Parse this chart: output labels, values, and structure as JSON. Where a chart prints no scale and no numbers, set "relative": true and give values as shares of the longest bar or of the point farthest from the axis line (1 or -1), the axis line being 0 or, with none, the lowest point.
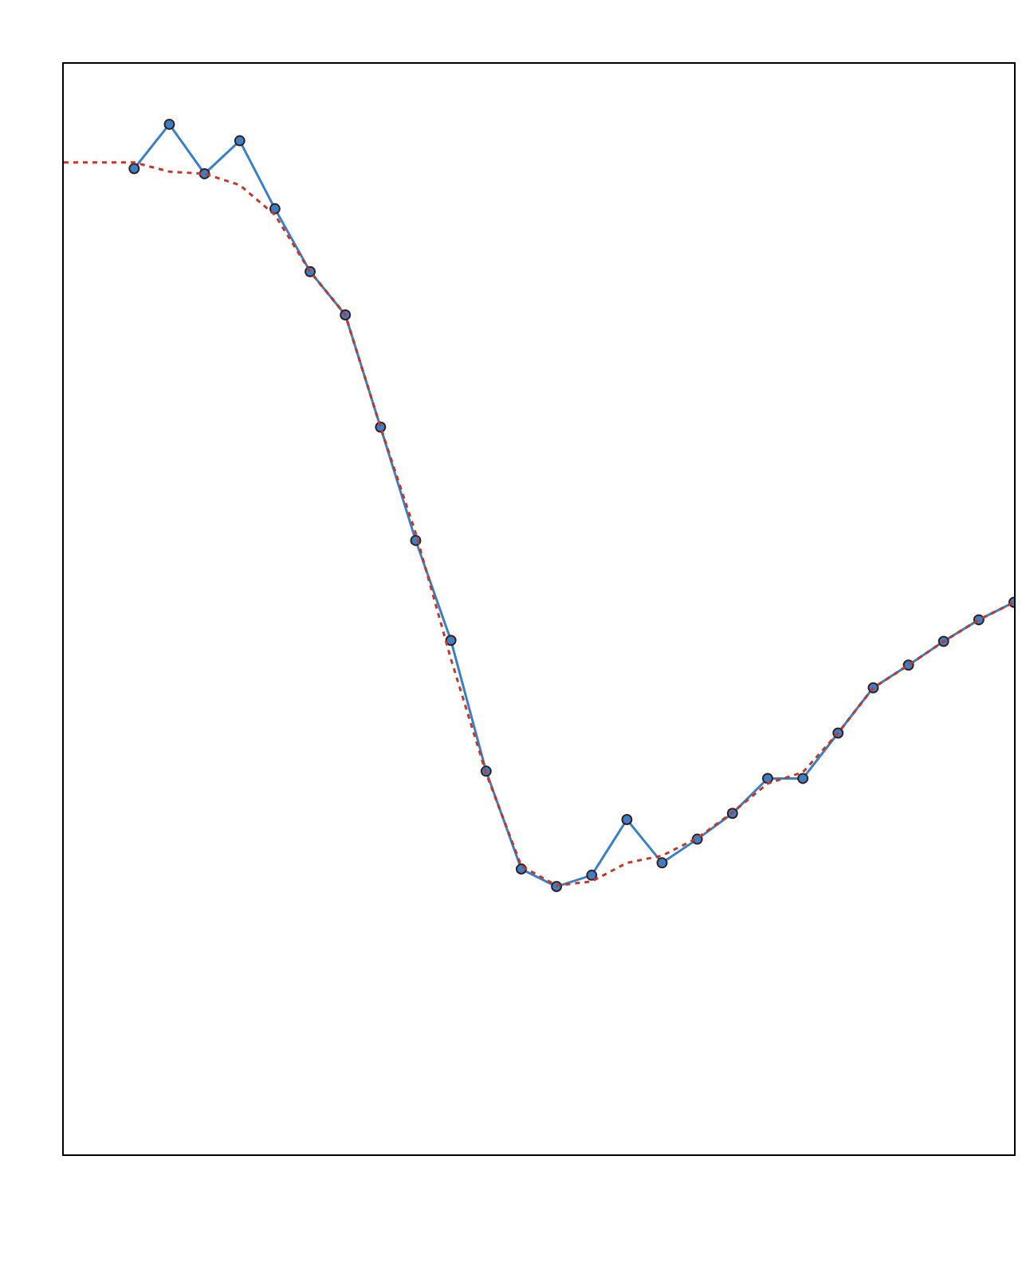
{
  "chart_data": {
    "type": "line",
    "relative": true,
    "categories": [
      null,
      null,
      null,
      null,
      null,
      null,
      null,
      null,
      null,
      null,
      null,
      null,
      null,
      null,
      null,
      null,
      null,
      null,
      null,
      null,
      null,
      null,
      null,
      null,
      null,
      null,
      null,
      null
    ],
    "series": [
      {
        "color": "#3b7fc4",
        "marker": "circle",
        "line_style": "solid",
        "values": [
          null,
          null,
          0.957,
          1.0,
          0.952,
          0.984,
          0.918,
          0.857,
          0.815,
          0.706,
          0.596,
          0.499,
          0.372,
          0.277,
          0.26,
          0.271,
          0.325,
          0.283,
          0.306,
          0.331,
          0.365,
          0.365,
          0.409,
          0.453,
          0.475,
          0.498,
          0.519,
          0.536
        ]
      },
      {
        "color": "#c0392b",
        "marker": "none",
        "line_style": "dotted",
        "values": [
          0.963,
          0.963,
          0.963,
          0.954,
          0.952,
          0.941,
          0.912,
          0.857,
          0.815,
          0.706,
          0.603,
          0.481,
          0.37,
          0.28,
          0.261,
          0.265,
          0.283,
          0.29,
          0.307,
          0.332,
          0.36,
          0.371,
          0.409,
          0.453,
          0.475,
          0.498,
          0.519,
          0.536
        ]
      }
    ]
  }
}
